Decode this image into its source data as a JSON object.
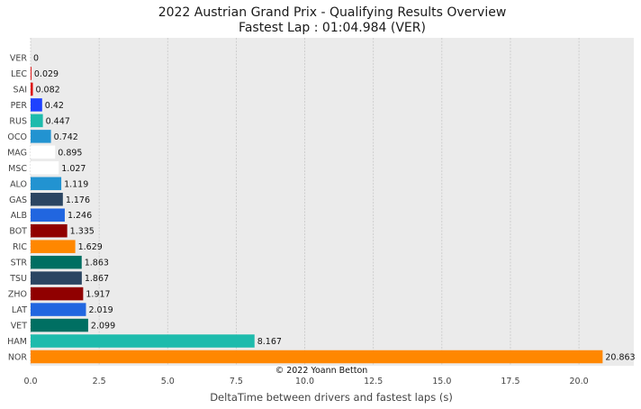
{
  "chart_data": {
    "type": "bar",
    "orientation": "horizontal",
    "title": "2022 Austrian Grand Prix - Qualifying Results Overview",
    "subtitle": "Fastest Lap : 01:04.984 (VER)",
    "xlabel": "DeltaTime between drivers and fastest laps (s)",
    "ylabel": "",
    "xlim": [
      0,
      22
    ],
    "xticks": [
      "0.0",
      "2.5",
      "5.0",
      "7.5",
      "10.0",
      "12.5",
      "15.0",
      "17.5",
      "20.0"
    ],
    "grid": "vertical",
    "categories": [
      "VER",
      "LEC",
      "SAI",
      "PER",
      "RUS",
      "OCO",
      "MAG",
      "MSC",
      "ALO",
      "GAS",
      "ALB",
      "BOT",
      "RIC",
      "STR",
      "TSU",
      "ZHO",
      "LAT",
      "VET",
      "HAM",
      "NOR"
    ],
    "values": [
      0,
      0.029,
      0.082,
      0.42,
      0.447,
      0.742,
      0.895,
      1.027,
      1.119,
      1.176,
      1.246,
      1.335,
      1.629,
      1.863,
      1.867,
      1.917,
      2.019,
      2.099,
      8.167,
      20.863
    ],
    "value_labels": [
      "0",
      "0.029",
      "0.082",
      "0.42",
      "0.447",
      "0.742",
      "0.895",
      "1.027",
      "1.119",
      "1.176",
      "1.246",
      "1.335",
      "1.629",
      "1.863",
      "1.867",
      "1.917",
      "2.019",
      "2.099",
      "8.167",
      "20.863"
    ],
    "colors": [
      "#1e41ff",
      "#dc0000",
      "#dc0000",
      "#1e41ff",
      "#1ebbac",
      "#2293d1",
      "#ffffff",
      "#ffffff",
      "#2293d1",
      "#2b4562",
      "#2166e0",
      "#900000",
      "#ff8700",
      "#006f62",
      "#2b4562",
      "#900000",
      "#2166e0",
      "#006f62",
      "#1ebbac",
      "#ff8700"
    ],
    "annotation": "© 2022 Yoann Betton"
  },
  "style": {
    "plot_background": "#ebebeb",
    "grid_color": "#c8c8c8"
  }
}
